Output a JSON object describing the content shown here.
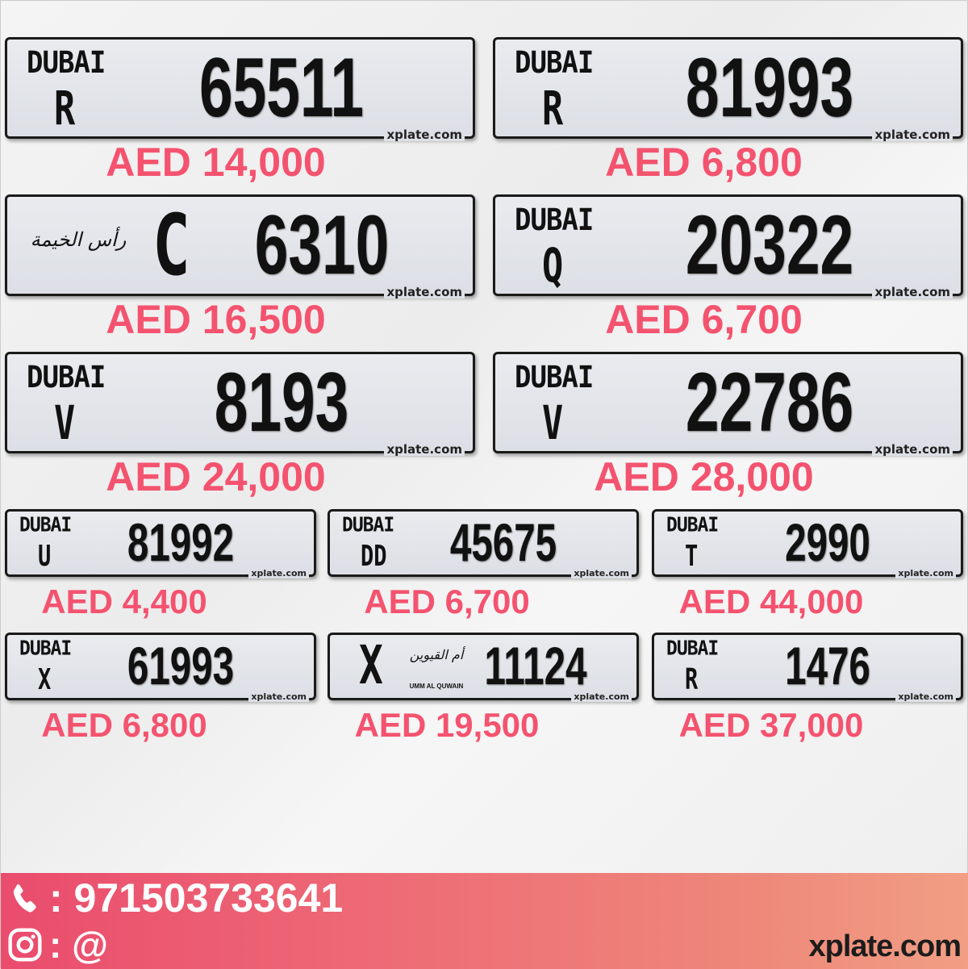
{
  "plates_large": [
    {
      "emirate": "DUBAI",
      "code": "R",
      "number": "65511",
      "brand": "xplate.com",
      "price": "AED 14,000"
    },
    {
      "emirate": "DUBAI",
      "code": "R",
      "number": "81993",
      "brand": "xplate.com",
      "price": "AED 6,800"
    },
    {
      "emirate": "",
      "logo": "رأس الخيمة",
      "code": "C",
      "number": "6310",
      "brand": "xplate.com",
      "price": "AED 16,500"
    },
    {
      "emirate": "DUBAI",
      "code": "Q",
      "number": "20322",
      "brand": "xplate.com",
      "price": "AED 6,700"
    },
    {
      "emirate": "DUBAI",
      "code": "V",
      "number": "8193",
      "brand": "xplate.com",
      "price": "AED 24,000"
    },
    {
      "emirate": "DUBAI",
      "code": "V",
      "number": "22786",
      "brand": "xplate.com",
      "price": "AED 28,000"
    }
  ],
  "plates_small": [
    {
      "emirate": "DUBAI",
      "code": "U",
      "number": "81992",
      "brand": "xplate.com",
      "price": "AED 4,400"
    },
    {
      "emirate": "DUBAI",
      "code": "DD",
      "number": "45675",
      "brand": "xplate.com",
      "price": "AED 6,700"
    },
    {
      "emirate": "DUBAI",
      "code": "T",
      "number": "2990",
      "brand": "xplate.com",
      "price": "AED 44,000"
    },
    {
      "emirate": "DUBAI",
      "code": "X",
      "number": "61993",
      "brand": "xplate.com",
      "price": "AED 6,800"
    },
    {
      "emirate": "",
      "logo": "أم القيوين",
      "logo_caption": "UMM AL QUWAIN",
      "code": "X",
      "number": "11124",
      "brand": "xplate.com",
      "price": "AED 19,500"
    },
    {
      "emirate": "DUBAI",
      "code": "R",
      "number": "1476",
      "brand": "xplate.com",
      "price": "AED 37,000"
    }
  ],
  "footer": {
    "phone_icon": "phone-icon",
    "phone": ": 971503733641",
    "instagram_icon": "instagram-icon",
    "instagram": ": @",
    "website": "xplate.com",
    "gradient": [
      "#ea4c6d",
      "#f19e84"
    ]
  },
  "colors": {
    "price": "#f4536f",
    "plate": "#e0e3e8",
    "border": "#1a1a1a"
  }
}
